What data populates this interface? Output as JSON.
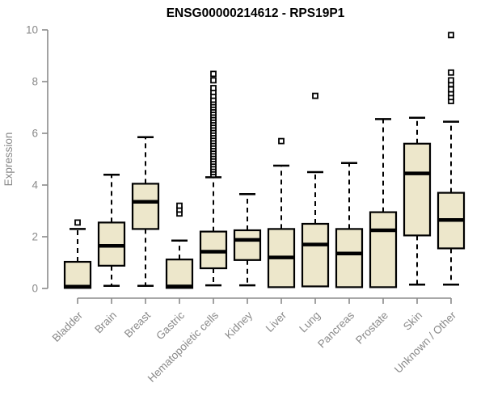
{
  "page": {
    "background": "#ffffff"
  },
  "chart_data": {
    "type": "boxplot",
    "title": "ENSG00000214612 - RPS19P1",
    "ylabel": "Expression",
    "xlabel": "",
    "ylim": [
      0,
      10
    ],
    "yticks": [
      0,
      2,
      4,
      6,
      8,
      10
    ],
    "grid": false,
    "legend": "none",
    "box_fill": "#EDE7CB",
    "box_stroke": "#000000",
    "axis_color": "#8B8B8B",
    "label_color": "#8A8A8A",
    "title_color": "#000000",
    "categories": [
      "Bladder",
      "Brain",
      "Breast",
      "Gastric",
      "Hematopoietic cells",
      "Kidney",
      "Liver",
      "Lung",
      "Pancreas",
      "Prostate",
      "Skin",
      "Unknown / Other"
    ],
    "boxes": [
      {
        "category": "Bladder",
        "whislo": 0.02,
        "q1": 0.02,
        "med": 0.07,
        "q3": 1.03,
        "whishi": 2.3,
        "outliers": [
          2.55
        ]
      },
      {
        "category": "Brain",
        "whislo": 0.1,
        "q1": 0.88,
        "med": 1.65,
        "q3": 2.55,
        "whishi": 4.4,
        "outliers": []
      },
      {
        "category": "Breast",
        "whislo": 0.1,
        "q1": 2.3,
        "med": 3.35,
        "q3": 4.05,
        "whishi": 5.85,
        "outliers": []
      },
      {
        "category": "Gastric",
        "whislo": 0.02,
        "q1": 0.02,
        "med": 0.08,
        "q3": 1.12,
        "whishi": 1.85,
        "outliers": [
          2.9,
          3.05,
          3.2
        ]
      },
      {
        "category": "Hematopoietic cells",
        "whislo": 0.12,
        "q1": 0.78,
        "med": 1.42,
        "q3": 2.2,
        "whishi": 4.3,
        "outliers": [
          4.4,
          4.5,
          4.6,
          4.7,
          4.8,
          4.9,
          5.0,
          5.1,
          5.2,
          5.3,
          5.4,
          5.5,
          5.6,
          5.7,
          5.8,
          5.9,
          6.0,
          6.1,
          6.2,
          6.3,
          6.4,
          6.5,
          6.6,
          6.7,
          6.8,
          6.9,
          7.0,
          7.1,
          7.2,
          7.3,
          7.45,
          7.6,
          7.75,
          8.05,
          8.3
        ]
      },
      {
        "category": "Kidney",
        "whislo": 0.12,
        "q1": 1.1,
        "med": 1.88,
        "q3": 2.25,
        "whishi": 3.65,
        "outliers": []
      },
      {
        "category": "Liver",
        "whislo": 0.05,
        "q1": 0.05,
        "med": 1.2,
        "q3": 2.3,
        "whishi": 4.75,
        "outliers": [
          5.7
        ]
      },
      {
        "category": "Lung",
        "whislo": 0.08,
        "q1": 0.08,
        "med": 1.7,
        "q3": 2.5,
        "whishi": 4.5,
        "outliers": [
          7.45
        ]
      },
      {
        "category": "Pancreas",
        "whislo": 0.05,
        "q1": 0.05,
        "med": 1.35,
        "q3": 2.3,
        "whishi": 4.85,
        "outliers": []
      },
      {
        "category": "Prostate",
        "whislo": 0.05,
        "q1": 0.05,
        "med": 2.25,
        "q3": 2.95,
        "whishi": 6.55,
        "outliers": []
      },
      {
        "category": "Skin",
        "whislo": 0.15,
        "q1": 2.05,
        "med": 4.45,
        "q3": 5.6,
        "whishi": 6.6,
        "outliers": []
      },
      {
        "category": "Unknown / Other",
        "whislo": 0.15,
        "q1": 1.55,
        "med": 2.65,
        "q3": 3.7,
        "whishi": 6.45,
        "outliers": [
          7.25,
          7.4,
          7.55,
          7.7,
          7.9,
          8.05,
          8.35,
          9.8
        ]
      }
    ]
  }
}
